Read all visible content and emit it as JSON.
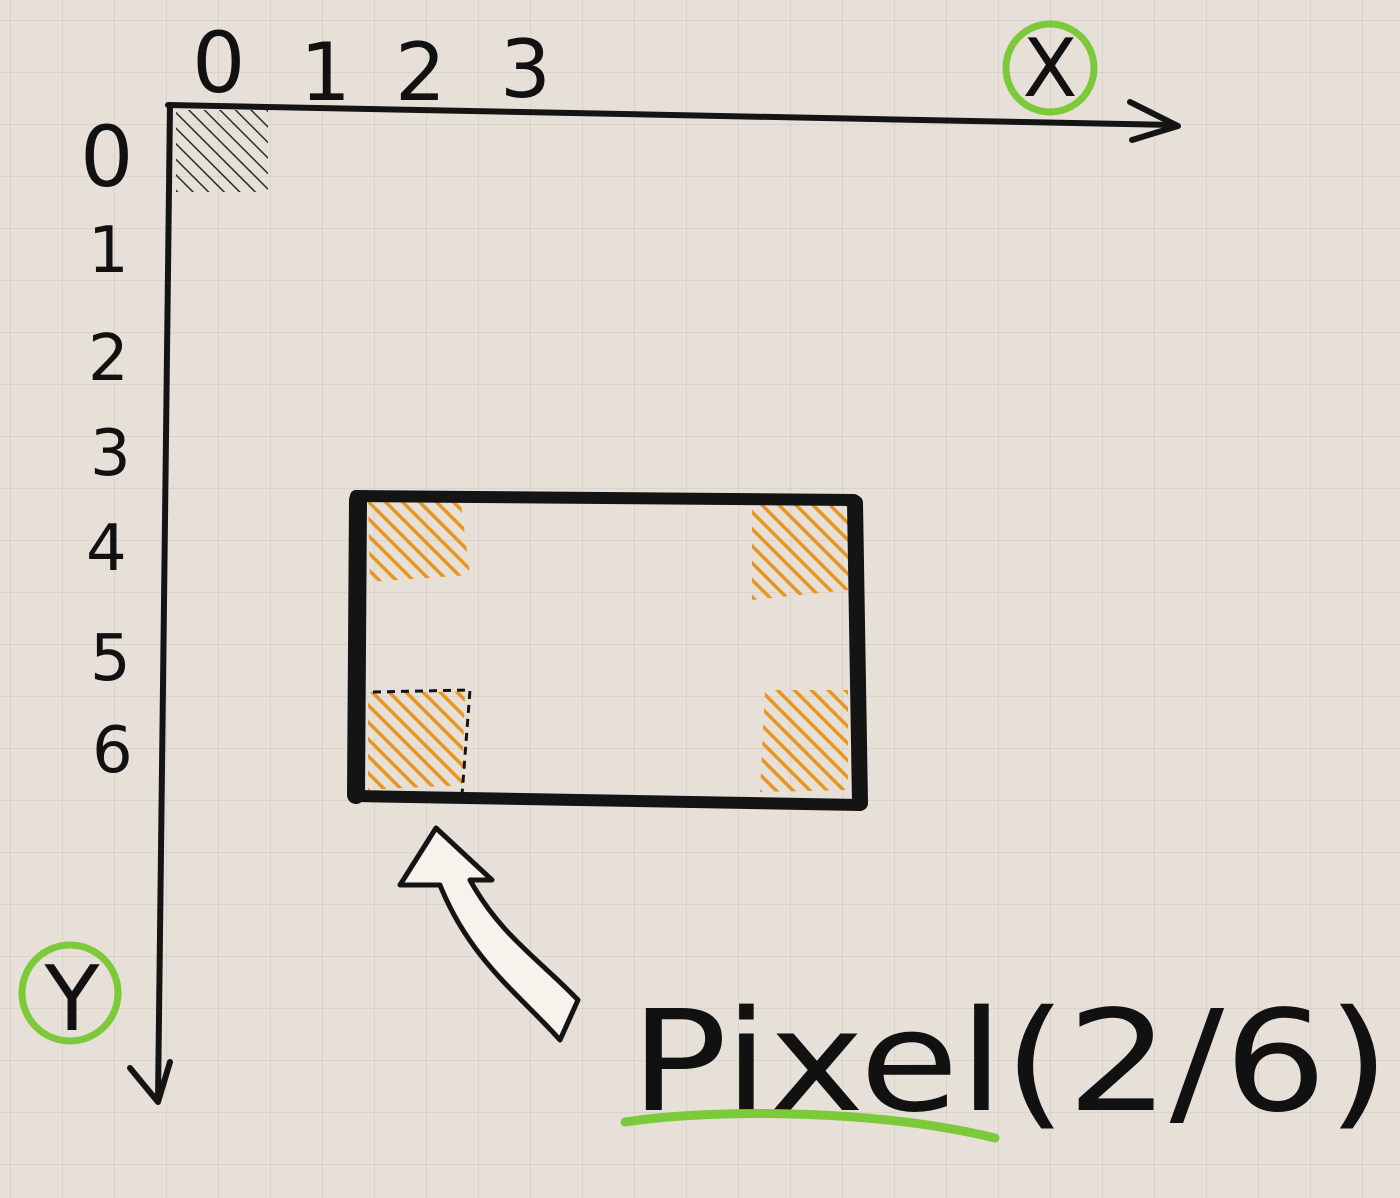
{
  "x_axis": {
    "label": "X",
    "ticks": [
      "0",
      "1",
      "2",
      "3"
    ]
  },
  "y_axis": {
    "label": "Y",
    "ticks": [
      "0",
      "1",
      "2",
      "3",
      "4",
      "5",
      "6"
    ]
  },
  "caption": {
    "text": "Pixel(2/6)"
  },
  "colors": {
    "ink": "#141414",
    "paper": "#e7e0d8",
    "highlight_orange": "#e8961f",
    "circle_green": "#7cc93a",
    "underline_green": "#7cc93a"
  }
}
